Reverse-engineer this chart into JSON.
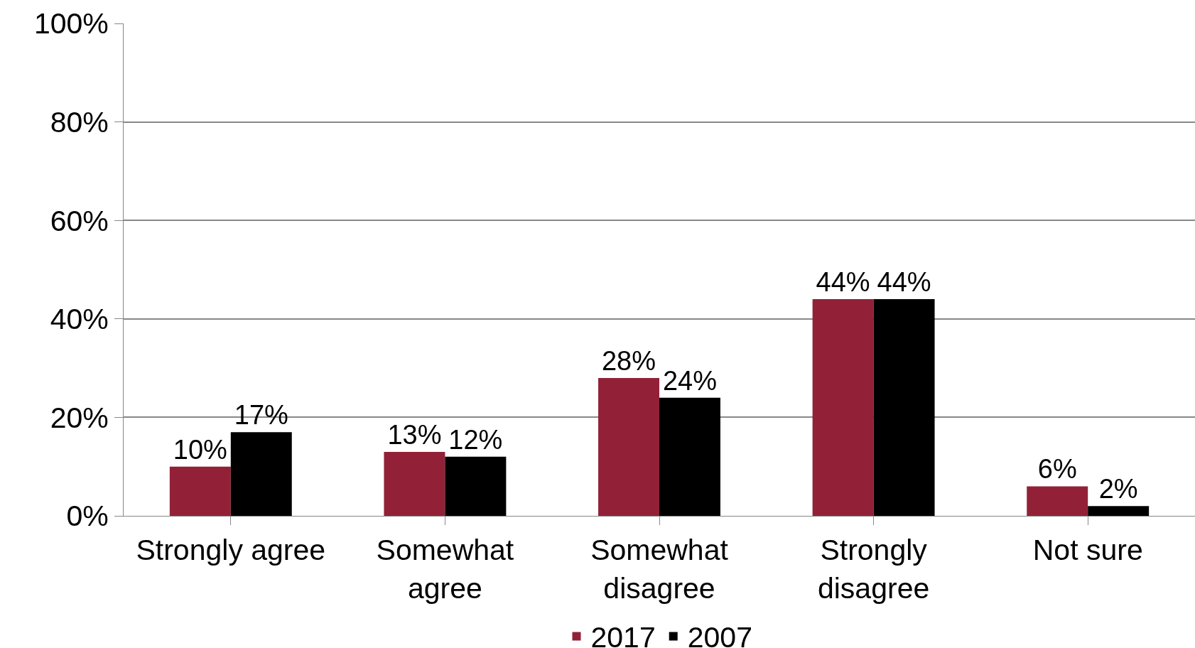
{
  "chart_data": {
    "type": "bar",
    "categories": [
      "Strongly agree",
      "Somewhat\nagree",
      "Somewhat\ndisagree",
      "Strongly\ndisagree",
      "Not sure"
    ],
    "series": [
      {
        "name": "2017",
        "color": "#922137",
        "values": [
          10,
          13,
          28,
          44,
          6
        ],
        "value_labels": [
          "10%",
          "13%",
          "28%",
          "44%",
          "6%"
        ]
      },
      {
        "name": "2007",
        "color": "#000000",
        "values": [
          17,
          12,
          24,
          44,
          2
        ],
        "value_labels": [
          "17%",
          "12%",
          "24%",
          "44%",
          "2%"
        ]
      }
    ],
    "ylim": [
      0,
      100
    ],
    "yticks": [
      {
        "value": 0,
        "label": "0%"
      },
      {
        "value": 20,
        "label": "20%"
      },
      {
        "value": 40,
        "label": "40%"
      },
      {
        "value": 60,
        "label": "60%"
      },
      {
        "value": 80,
        "label": "80%"
      },
      {
        "value": 100,
        "label": "100%"
      }
    ],
    "grid": "y",
    "legend": "bottom"
  }
}
